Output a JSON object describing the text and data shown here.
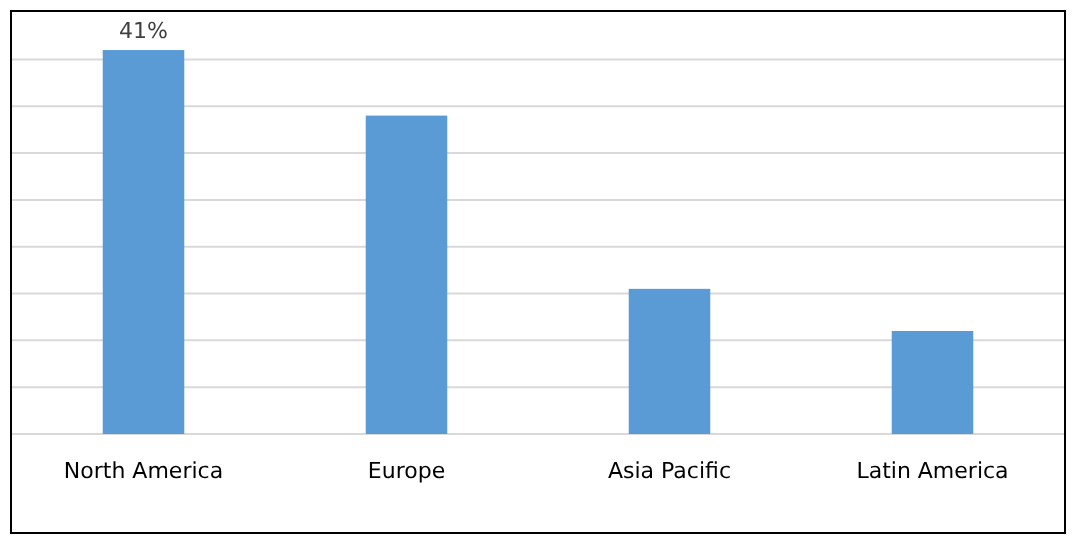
{
  "chart_data": {
    "type": "bar",
    "categories": [
      "North America",
      "Europe",
      "Asia Pacific",
      "Latin America"
    ],
    "values": [
      41,
      34,
      15.5,
      11
    ],
    "value_labels": [
      "41%",
      null,
      null,
      null
    ],
    "color": "#5b9bd5",
    "grid": "y",
    "tick_labels": "x",
    "ylim": [
      0,
      45
    ],
    "yticks": [
      {
        "value": 0,
        "label": null
      },
      {
        "value": 5,
        "label": null
      },
      {
        "value": 10,
        "label": null
      },
      {
        "value": 15,
        "label": null
      },
      {
        "value": 20,
        "label": null
      },
      {
        "value": 25,
        "label": null
      },
      {
        "value": 30,
        "label": null
      },
      {
        "value": 35,
        "label": null
      },
      {
        "value": 40,
        "label": null
      }
    ]
  }
}
